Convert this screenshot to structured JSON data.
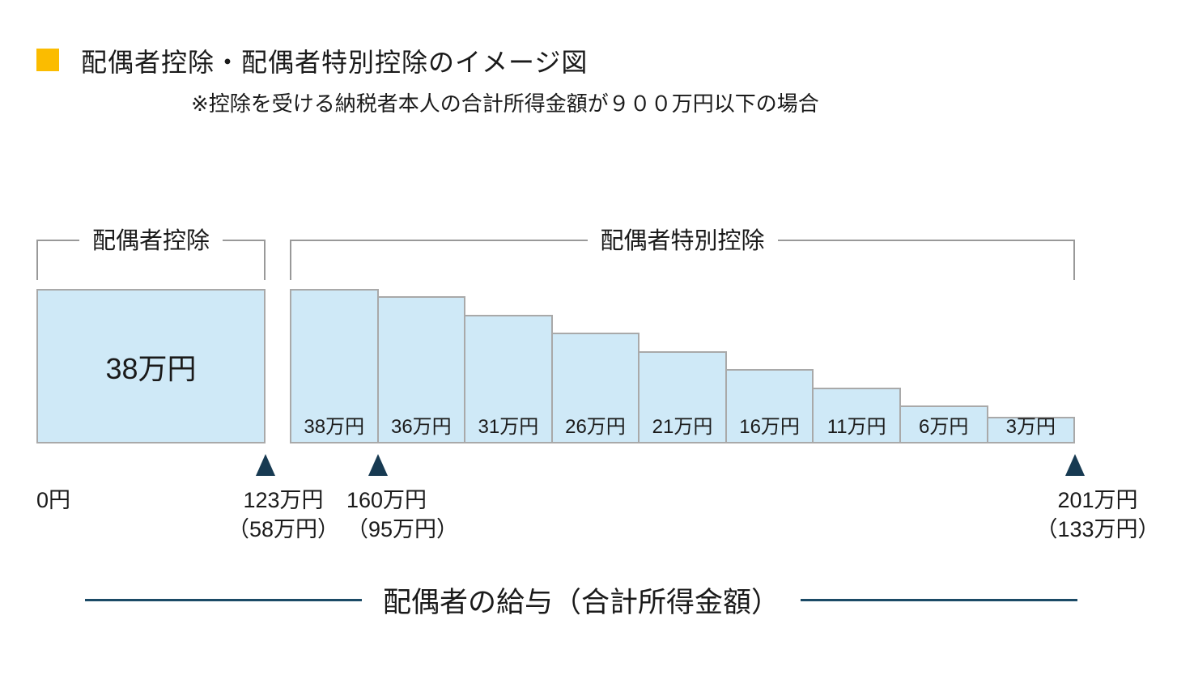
{
  "header": {
    "title": "配偶者控除・配偶者特別控除のイメージ図",
    "subtitle": "※控除を受ける納税者本人の合計所得金額が９００万円以下の場合"
  },
  "chart_data": {
    "type": "bar",
    "title": "配偶者控除・配偶者特別控除のイメージ図",
    "note": "※控除を受ける納税者本人の合計所得金額が９００万円以下の場合",
    "unit": "万円",
    "groups": [
      {
        "name": "配偶者控除",
        "bars": [
          {
            "label": "38万円",
            "value": 38
          }
        ]
      },
      {
        "name": "配偶者特別控除",
        "bars": [
          {
            "label": "38万円",
            "value": 38
          },
          {
            "label": "36万円",
            "value": 36
          },
          {
            "label": "31万円",
            "value": 31
          },
          {
            "label": "26万円",
            "value": 26
          },
          {
            "label": "21万円",
            "value": 21
          },
          {
            "label": "16万円",
            "value": 16
          },
          {
            "label": "11万円",
            "value": 11
          },
          {
            "label": "6万円",
            "value": 6
          },
          {
            "label": "3万円",
            "value": 3
          }
        ]
      }
    ],
    "x_markers": [
      {
        "label": "0円",
        "sublabel": ""
      },
      {
        "label": "123万円",
        "sublabel": "（58万円）"
      },
      {
        "label": "160万円",
        "sublabel": "（95万円）"
      },
      {
        "label": "201万円",
        "sublabel": "（133万円）"
      }
    ],
    "xlabel": "配偶者の給与（合計所得金額）",
    "legend_position": "none",
    "grid": false
  },
  "colors": {
    "bar_fill": "#CFE9F7",
    "bar_border": "#A9A9A9",
    "bracket": "#999999",
    "marker": "#173A52",
    "axis_line": "#1B4A66",
    "bullet": "#FBBC00"
  }
}
